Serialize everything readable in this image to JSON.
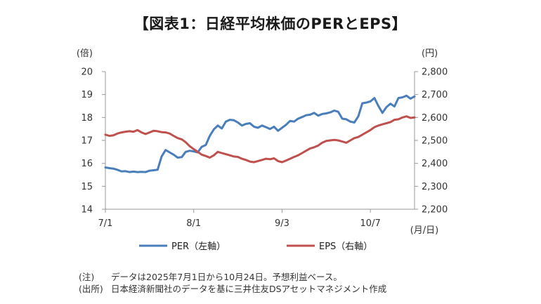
{
  "title": "【図表1：日経平均株価のPERとEPS】",
  "chart_data": {
    "type": "line",
    "left_axis": {
      "unit_label": "(倍)",
      "ticks": [
        14,
        15,
        16,
        17,
        18,
        19,
        20
      ],
      "ylim": [
        14,
        20
      ]
    },
    "right_axis": {
      "unit_label": "(円)",
      "ticks": [
        "2,200",
        "2,300",
        "2,400",
        "2,500",
        "2,600",
        "2,700",
        "2,800"
      ],
      "ylim": [
        2200,
        2800
      ]
    },
    "x_ticks": [
      "7/1",
      "8/1",
      "9/3",
      "10/7"
    ],
    "x_unit_label": "(月/日)",
    "series": [
      {
        "name": "PER（左軸）",
        "axis": "left",
        "color": "#4a7ebb",
        "values": [
          15.82,
          15.79,
          15.77,
          15.72,
          15.65,
          15.66,
          15.62,
          15.64,
          15.62,
          15.63,
          15.62,
          15.68,
          15.7,
          15.72,
          16.3,
          16.58,
          16.48,
          16.38,
          16.25,
          16.27,
          16.5,
          16.55,
          16.52,
          16.48,
          16.72,
          16.8,
          17.2,
          17.48,
          17.65,
          17.52,
          17.82,
          17.9,
          17.88,
          17.78,
          17.65,
          17.72,
          17.75,
          17.6,
          17.55,
          17.65,
          17.58,
          17.5,
          17.6,
          17.42,
          17.55,
          17.68,
          17.85,
          17.82,
          17.95,
          18.02,
          18.1,
          18.12,
          18.2,
          18.08,
          18.15,
          18.18,
          18.22,
          18.3,
          18.25,
          17.95,
          17.92,
          17.82,
          17.78,
          18.05,
          18.62,
          18.65,
          18.7,
          18.85,
          18.5,
          18.2,
          18.45,
          18.6,
          18.48,
          18.85,
          18.88,
          18.95,
          18.82,
          18.92
        ]
      },
      {
        "name": "EPS（右軸）",
        "axis": "right",
        "color": "#c0504d",
        "values": [
          2525,
          2520,
          2522,
          2530,
          2535,
          2538,
          2540,
          2538,
          2545,
          2535,
          2528,
          2535,
          2542,
          2540,
          2536,
          2535,
          2530,
          2520,
          2510,
          2505,
          2492,
          2475,
          2462,
          2450,
          2438,
          2432,
          2425,
          2435,
          2450,
          2445,
          2440,
          2435,
          2430,
          2428,
          2420,
          2415,
          2408,
          2405,
          2410,
          2415,
          2420,
          2418,
          2422,
          2410,
          2405,
          2412,
          2420,
          2428,
          2435,
          2445,
          2455,
          2465,
          2470,
          2478,
          2490,
          2498,
          2500,
          2502,
          2500,
          2495,
          2490,
          2500,
          2510,
          2515,
          2525,
          2535,
          2545,
          2558,
          2565,
          2570,
          2575,
          2580,
          2590,
          2592,
          2600,
          2605,
          2598,
          2600
        ]
      }
    ],
    "legend": {
      "position": "bottom"
    },
    "grid": false
  },
  "notes": [
    {
      "label": "(注)",
      "text": "データは2025年7月1日から10月24日。予想利益ベース。"
    },
    {
      "label": "(出所)",
      "text": "日本経済新聞社のデータを基に三井住友DSアセットマネジメント作成"
    }
  ]
}
